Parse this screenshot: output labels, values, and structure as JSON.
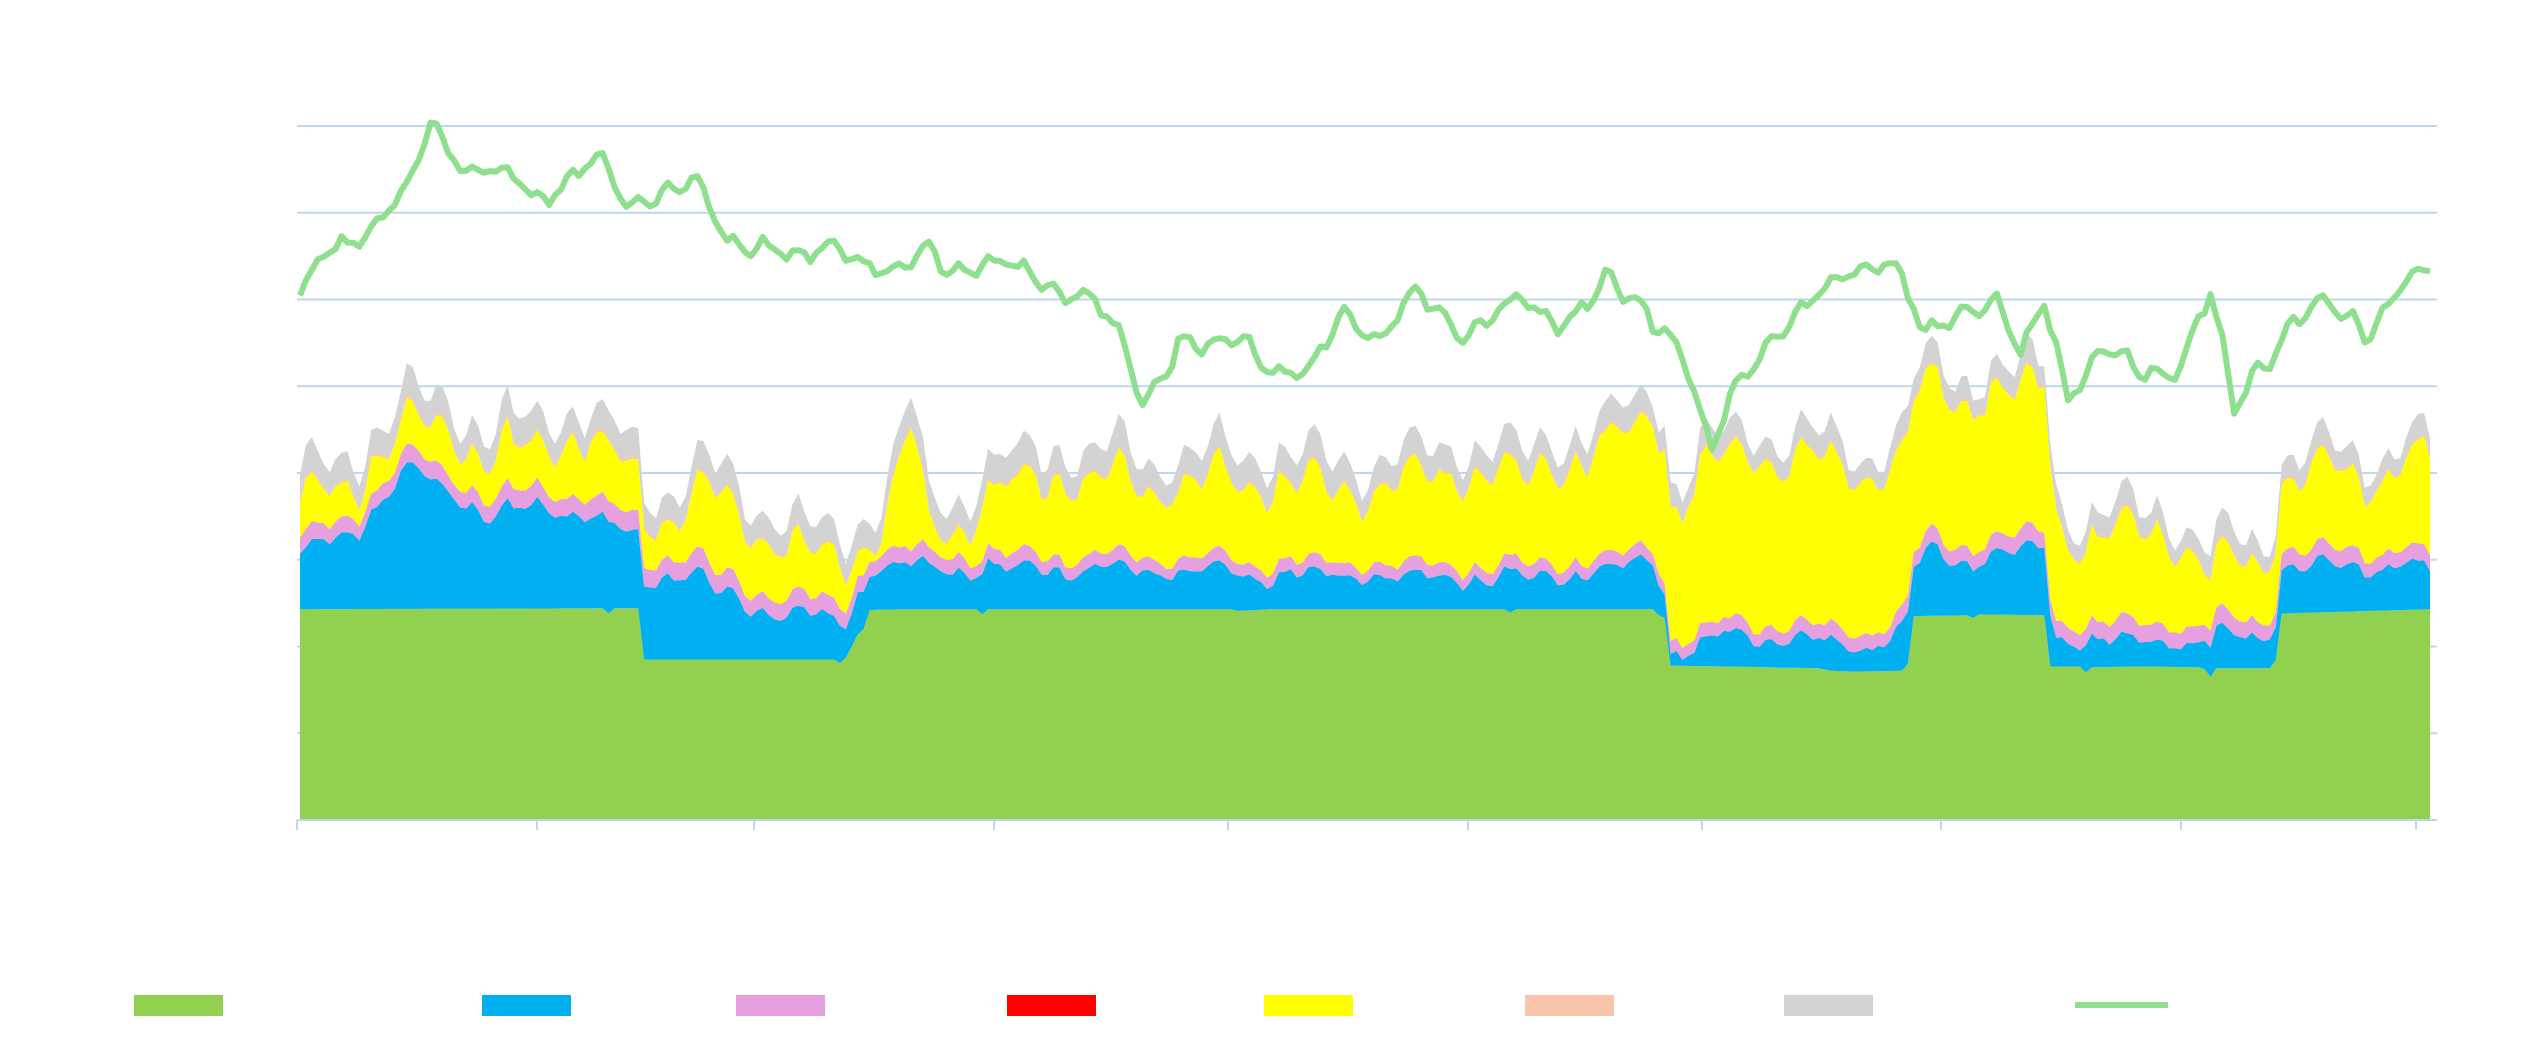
{
  "chart_data": {
    "type": "area",
    "title": "",
    "xlabel": "",
    "ylabel": "",
    "ylim": [
      0,
      8
    ],
    "y_gridlines": [
      1,
      2,
      3,
      4,
      5,
      6,
      7,
      8
    ],
    "x_tick_count": 10,
    "grid": true,
    "legend_position": "bottom",
    "n_points": 360,
    "series": [
      {
        "name": "",
        "kind": "area",
        "color": "#92d050",
        "baseline": [
          [
            0,
            2.43
          ],
          [
            51,
            2.44
          ],
          [
            52,
            2.38
          ],
          [
            53,
            2.44
          ],
          [
            57,
            2.44
          ],
          [
            58,
            1.85
          ],
          [
            90,
            1.85
          ],
          [
            91,
            1.81
          ],
          [
            92,
            1.87
          ],
          [
            93,
            2.0
          ],
          [
            94,
            2.14
          ],
          [
            95,
            2.2
          ],
          [
            96,
            2.42
          ],
          [
            102,
            2.43
          ],
          [
            114,
            2.43
          ],
          [
            115,
            2.37
          ],
          [
            116,
            2.43
          ],
          [
            157,
            2.43
          ],
          [
            158,
            2.41
          ],
          [
            164,
            2.43
          ],
          [
            203,
            2.43
          ],
          [
            204,
            2.39
          ],
          [
            205,
            2.43
          ],
          [
            224,
            2.43
          ],
          [
            228,
            2.43
          ],
          [
            229,
            2.36
          ],
          [
            230,
            2.33
          ],
          [
            231,
            1.78
          ],
          [
            256,
            1.75
          ],
          [
            258,
            1.72
          ],
          [
            262,
            1.71
          ],
          [
            270,
            1.72
          ],
          [
            271,
            1.8
          ],
          [
            272,
            2.35
          ],
          [
            281,
            2.36
          ],
          [
            282,
            2.33
          ],
          [
            283,
            2.37
          ],
          [
            294,
            2.36
          ],
          [
            295,
            1.77
          ],
          [
            300,
            1.77
          ],
          [
            301,
            1.7
          ],
          [
            302,
            1.76
          ],
          [
            310,
            1.77
          ],
          [
            320,
            1.76
          ],
          [
            321,
            1.74
          ],
          [
            322,
            1.65
          ],
          [
            323,
            1.75
          ],
          [
            332,
            1.75
          ],
          [
            333,
            1.84
          ],
          [
            334,
            2.38
          ],
          [
            359,
            2.43
          ]
        ],
        "amp": 0.0
      },
      {
        "name": "",
        "kind": "area",
        "color": "#00b0f0",
        "baseline": [
          [
            0,
            0.65
          ],
          [
            10,
            0.95
          ],
          [
            18,
            1.55
          ],
          [
            25,
            1.42
          ],
          [
            32,
            1.05
          ],
          [
            40,
            1.2
          ],
          [
            50,
            1.0
          ],
          [
            56,
            0.85
          ],
          [
            62,
            0.95
          ],
          [
            66,
            1.0
          ],
          [
            70,
            0.8
          ],
          [
            80,
            0.5
          ],
          [
            90,
            0.45
          ],
          [
            100,
            0.5
          ],
          [
            110,
            0.45
          ],
          [
            120,
            0.48
          ],
          [
            130,
            0.43
          ],
          [
            140,
            0.45
          ],
          [
            150,
            0.45
          ],
          [
            160,
            0.43
          ],
          [
            170,
            0.42
          ],
          [
            180,
            0.42
          ],
          [
            190,
            0.38
          ],
          [
            200,
            0.35
          ],
          [
            210,
            0.38
          ],
          [
            220,
            0.42
          ],
          [
            228,
            0.55
          ],
          [
            231,
            0.12
          ],
          [
            240,
            0.35
          ],
          [
            250,
            0.35
          ],
          [
            258,
            0.3
          ],
          [
            265,
            0.35
          ],
          [
            270,
            0.45
          ],
          [
            275,
            0.72
          ],
          [
            282,
            0.65
          ],
          [
            290,
            0.75
          ],
          [
            294,
            0.82
          ],
          [
            296,
            0.35
          ],
          [
            305,
            0.3
          ],
          [
            315,
            0.28
          ],
          [
            320,
            0.3
          ],
          [
            325,
            0.4
          ],
          [
            330,
            0.35
          ],
          [
            335,
            0.5
          ],
          [
            345,
            0.5
          ],
          [
            355,
            0.55
          ],
          [
            359,
            0.45
          ]
        ],
        "amp": 0.22
      },
      {
        "name": "",
        "kind": "area",
        "color": "#e6a0e0",
        "baseline": [
          [
            0,
            0.18
          ],
          [
            60,
            0.22
          ],
          [
            120,
            0.16
          ],
          [
            180,
            0.14
          ],
          [
            240,
            0.15
          ],
          [
            300,
            0.2
          ],
          [
            359,
            0.18
          ]
        ],
        "amp": 0.04
      },
      {
        "name": "",
        "kind": "area",
        "color": "#ff0000",
        "baseline": [
          [
            0,
            0.0
          ],
          [
            359,
            0.0
          ]
        ],
        "amp": 0.0
      },
      {
        "name": "",
        "kind": "area",
        "color": "#ffff00",
        "baseline": [
          [
            0,
            0.35
          ],
          [
            10,
            0.45
          ],
          [
            18,
            0.3
          ],
          [
            25,
            0.5
          ],
          [
            35,
            0.45
          ],
          [
            45,
            0.65
          ],
          [
            55,
            0.55
          ],
          [
            62,
            0.4
          ],
          [
            70,
            0.85
          ],
          [
            80,
            0.55
          ],
          [
            90,
            0.45
          ],
          [
            98,
            0.25
          ],
          [
            103,
            1.45
          ],
          [
            106,
            0.3
          ],
          [
            112,
            0.45
          ],
          [
            118,
            0.75
          ],
          [
            125,
            0.85
          ],
          [
            135,
            0.95
          ],
          [
            145,
            0.8
          ],
          [
            155,
            0.85
          ],
          [
            165,
            0.95
          ],
          [
            175,
            0.8
          ],
          [
            185,
            0.95
          ],
          [
            195,
            1.05
          ],
          [
            205,
            1.0
          ],
          [
            215,
            1.2
          ],
          [
            225,
            1.35
          ],
          [
            228,
            1.65
          ],
          [
            232,
            1.6
          ],
          [
            240,
            1.95
          ],
          [
            250,
            1.95
          ],
          [
            260,
            1.9
          ],
          [
            270,
            1.8
          ],
          [
            280,
            1.7
          ],
          [
            290,
            1.65
          ],
          [
            294,
            1.75
          ],
          [
            298,
            0.95
          ],
          [
            305,
            1.0
          ],
          [
            315,
            1.1
          ],
          [
            322,
            0.6
          ],
          [
            330,
            0.75
          ],
          [
            340,
            0.85
          ],
          [
            350,
            0.9
          ],
          [
            359,
            1.1
          ]
        ],
        "amp": 0.32
      },
      {
        "name": "",
        "kind": "area",
        "color": "#f8c5ac",
        "baseline": [
          [
            0,
            0.02
          ],
          [
            359,
            0.02
          ]
        ],
        "amp": 0.01
      },
      {
        "name": "",
        "kind": "area",
        "color": "#d3d3d3",
        "baseline": [
          [
            0,
            0.3
          ],
          [
            40,
            0.3
          ],
          [
            80,
            0.28
          ],
          [
            120,
            0.32
          ],
          [
            160,
            0.3
          ],
          [
            200,
            0.28
          ],
          [
            240,
            0.25
          ],
          [
            280,
            0.25
          ],
          [
            320,
            0.25
          ],
          [
            359,
            0.22
          ]
        ],
        "amp": 0.1
      },
      {
        "name": "",
        "kind": "line",
        "color": "#8ee08e",
        "baseline": [
          [
            0,
            5.95
          ],
          [
            5,
            6.6
          ],
          [
            12,
            6.9
          ],
          [
            18,
            7.25
          ],
          [
            22,
            8.0
          ],
          [
            28,
            7.6
          ],
          [
            35,
            7.4
          ],
          [
            40,
            7.15
          ],
          [
            46,
            7.5
          ],
          [
            50,
            7.6
          ],
          [
            55,
            7.0
          ],
          [
            60,
            7.25
          ],
          [
            66,
            7.45
          ],
          [
            72,
            6.6
          ],
          [
            78,
            6.75
          ],
          [
            84,
            6.4
          ],
          [
            90,
            6.55
          ],
          [
            96,
            6.45
          ],
          [
            100,
            6.2
          ],
          [
            106,
            6.45
          ],
          [
            112,
            6.4
          ],
          [
            118,
            6.35
          ],
          [
            125,
            6.2
          ],
          [
            132,
            6.1
          ],
          [
            138,
            5.6
          ],
          [
            142,
            4.8
          ],
          [
            148,
            5.6
          ],
          [
            152,
            5.3
          ],
          [
            158,
            5.6
          ],
          [
            164,
            5.2
          ],
          [
            170,
            5.1
          ],
          [
            176,
            5.85
          ],
          [
            182,
            5.6
          ],
          [
            188,
            6.05
          ],
          [
            194,
            5.7
          ],
          [
            200,
            5.75
          ],
          [
            206,
            5.95
          ],
          [
            212,
            5.7
          ],
          [
            220,
            6.2
          ],
          [
            226,
            5.85
          ],
          [
            232,
            5.6
          ],
          [
            238,
            4.2
          ],
          [
            242,
            5.0
          ],
          [
            248,
            5.6
          ],
          [
            254,
            5.85
          ],
          [
            258,
            6.15
          ],
          [
            262,
            6.4
          ],
          [
            268,
            6.5
          ],
          [
            274,
            5.5
          ],
          [
            280,
            6.0
          ],
          [
            286,
            5.9
          ],
          [
            290,
            5.25
          ],
          [
            294,
            6.05
          ],
          [
            298,
            5.0
          ],
          [
            304,
            5.4
          ],
          [
            310,
            5.1
          ],
          [
            316,
            5.3
          ],
          [
            322,
            6.05
          ],
          [
            326,
            4.7
          ],
          [
            330,
            5.3
          ],
          [
            336,
            5.7
          ],
          [
            342,
            5.9
          ],
          [
            348,
            5.7
          ],
          [
            354,
            6.15
          ],
          [
            359,
            6.25
          ]
        ],
        "amp": 0.28
      }
    ]
  },
  "legend": {
    "position": "bottom",
    "items": [
      {
        "color": "#92d050",
        "kind": "swatch",
        "label": ""
      },
      {
        "color": "#00b0f0",
        "kind": "swatch",
        "label": ""
      },
      {
        "color": "#e6a0e0",
        "kind": "swatch",
        "label": ""
      },
      {
        "color": "#ff0000",
        "kind": "swatch",
        "label": ""
      },
      {
        "color": "#ffff00",
        "kind": "swatch",
        "label": ""
      },
      {
        "color": "#f8c5ac",
        "kind": "swatch",
        "label": ""
      },
      {
        "color": "#d3d3d3",
        "kind": "swatch",
        "label": ""
      },
      {
        "color": "#8ee08e",
        "kind": "line",
        "label": ""
      }
    ]
  }
}
